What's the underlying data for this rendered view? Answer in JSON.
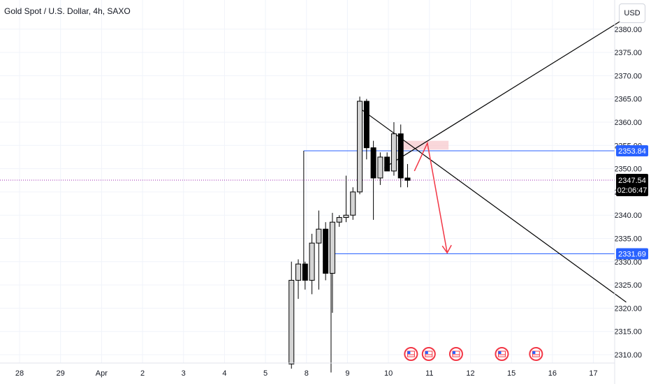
{
  "header": {
    "title": "Gold Spot / U.S. Dollar, 4h, SAXO"
  },
  "currency_button": {
    "label": "USD"
  },
  "colors": {
    "grid": "#f0f3fa",
    "axis_border": "#e0e3eb",
    "candle_up_fill": "#d4d4d4",
    "candle_down_fill": "#000000",
    "candle_outline": "#000000",
    "hline": "#2962ff",
    "trendline": "#000000",
    "arrow": "#f23645",
    "zone": "#f7c6cb",
    "current_price_line": "#9c27b0",
    "current_price_badge": "#000000",
    "event_flag": "#f23645"
  },
  "chart_data": {
    "type": "candlestick",
    "title": "Gold Spot / U.S. Dollar, 4h, SAXO",
    "ylim": [
      2308.5,
      2384
    ],
    "y_ticks": [
      "2310.00",
      "2315.00",
      "2320.00",
      "2325.00",
      "2330.00",
      "2335.00",
      "2340.00",
      "2345.00",
      "2350.00",
      "2355.00",
      "2360.00",
      "2365.00",
      "2370.00",
      "2375.00",
      "2380.00"
    ],
    "x_ticks": [
      {
        "label": "28",
        "t": 0
      },
      {
        "label": "29",
        "t": 6
      },
      {
        "label": "Apr",
        "t": 12
      },
      {
        "label": "2",
        "t": 18
      },
      {
        "label": "3",
        "t": 24
      },
      {
        "label": "4",
        "t": 30
      },
      {
        "label": "5",
        "t": 36
      },
      {
        "label": "8",
        "t": 42
      },
      {
        "label": "9",
        "t": 48
      },
      {
        "label": "10",
        "t": 54
      },
      {
        "label": "11",
        "t": 60
      },
      {
        "label": "12",
        "t": 66
      },
      {
        "label": "15",
        "t": 72
      },
      {
        "label": "16",
        "t": 78
      },
      {
        "label": "17",
        "t": 84
      }
    ],
    "xlim": [
      -1.0,
      89.0
    ],
    "candles": [
      {
        "t": 39.8,
        "o": 2308.0,
        "h": 2330.0,
        "l": 2307.0,
        "c": 2326.0
      },
      {
        "t": 40.8,
        "o": 2326.0,
        "h": 2330.5,
        "l": 2322.0,
        "c": 2329.5
      },
      {
        "t": 41.8,
        "o": 2329.5,
        "h": 2330.0,
        "l": 2324.0,
        "c": 2326.0
      },
      {
        "t": 42.8,
        "o": 2326.0,
        "h": 2336.0,
        "l": 2323.0,
        "c": 2334.0
      },
      {
        "t": 43.8,
        "o": 2334.0,
        "h": 2341.0,
        "l": 2324.0,
        "c": 2337.0
      },
      {
        "t": 44.8,
        "o": 2337.0,
        "h": 2338.5,
        "l": 2326.0,
        "c": 2327.5
      },
      {
        "t": 45.8,
        "o": 2327.5,
        "h": 2340.5,
        "l": 2319.0,
        "c": 2338.5
      },
      {
        "t": 46.8,
        "o": 2338.5,
        "h": 2340.0,
        "l": 2337.5,
        "c": 2339.5
      },
      {
        "t": 47.8,
        "o": 2339.5,
        "h": 2348.5,
        "l": 2338.5,
        "c": 2340.0
      },
      {
        "t": 48.8,
        "o": 2340.0,
        "h": 2346.0,
        "l": 2339.0,
        "c": 2345.0
      },
      {
        "t": 49.8,
        "o": 2345.0,
        "h": 2365.5,
        "l": 2344.5,
        "c": 2364.5
      },
      {
        "t": 50.8,
        "o": 2364.5,
        "h": 2365.0,
        "l": 2352.0,
        "c": 2354.5
      },
      {
        "t": 51.8,
        "o": 2354.5,
        "h": 2356.0,
        "l": 2339.0,
        "c": 2348.0
      },
      {
        "t": 52.8,
        "o": 2348.0,
        "h": 2353.5,
        "l": 2346.5,
        "c": 2352.5
      },
      {
        "t": 53.8,
        "o": 2352.5,
        "h": 2353.5,
        "l": 2349.5,
        "c": 2349.5
      },
      {
        "t": 54.8,
        "o": 2349.5,
        "h": 2360.0,
        "l": 2348.5,
        "c": 2357.5
      },
      {
        "t": 55.8,
        "o": 2357.5,
        "h": 2359.5,
        "l": 2346.0,
        "c": 2348.0
      },
      {
        "t": 56.8,
        "o": 2348.0,
        "h": 2351.0,
        "l": 2346.0,
        "c": 2347.5
      }
    ],
    "horizontal_lines": [
      {
        "price": 2353.84,
        "label": "2353.84",
        "t_start": 41.6
      },
      {
        "price": 2331.69,
        "label": "2331.69",
        "t_start": 45.6
      }
    ],
    "trendlines": [
      {
        "t1": 49.6,
        "p1": 2363.2,
        "t2": 88.8,
        "p2": 2321.3
      },
      {
        "t1": 53.4,
        "p1": 2350.2,
        "t2": 88.8,
        "p2": 2382.5
      }
    ],
    "zone": {
      "t1": 56.2,
      "t2": 62.8,
      "p1": 2356.0,
      "p2": 2354.1
    },
    "arrow": {
      "t1": 57.8,
      "p1": 2349.5,
      "t_mid": 59.7,
      "p_mid": 2355.5,
      "t2": 62.6,
      "p2": 2331.9
    },
    "current_price": {
      "price": 2347.54,
      "label": "2347.54",
      "countdown": "02:06:47"
    },
    "event_flags": [
      {
        "t": 57.3
      },
      {
        "t": 59.9
      },
      {
        "t": 63.9
      },
      {
        "t": 70.6
      },
      {
        "t": 75.6
      }
    ]
  }
}
